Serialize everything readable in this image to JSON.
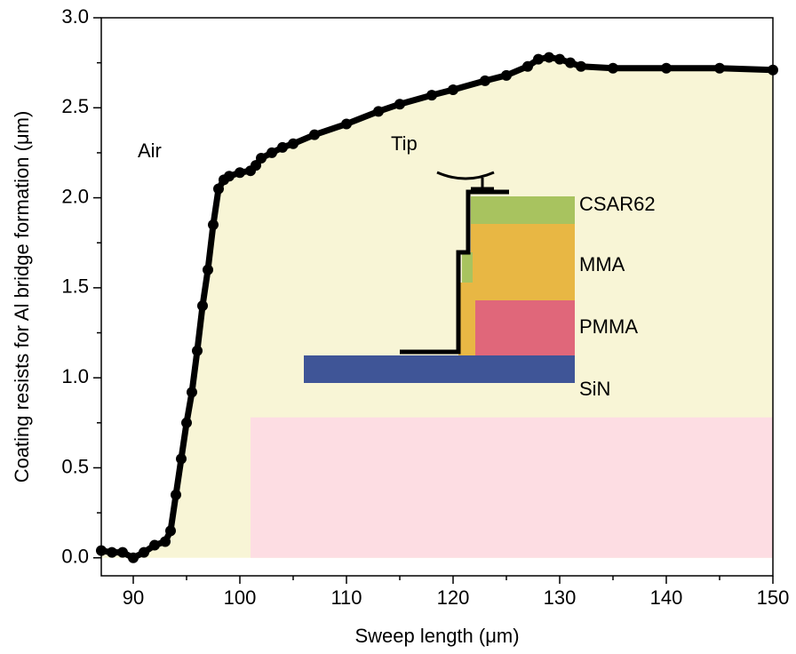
{
  "chart_data": {
    "type": "line",
    "x_label": "Sweep length (μm)",
    "y_label": "Coating resists for Al bridge formation (μm)",
    "xlim": [
      87,
      150
    ],
    "ylim": [
      -0.1,
      3.0
    ],
    "xticks": [
      90,
      100,
      110,
      120,
      130,
      140,
      150
    ],
    "xminorticks": [
      95,
      105,
      115,
      125,
      135,
      145
    ],
    "yticks": [
      {
        "value": 0,
        "label": "0.0"
      },
      0.5,
      {
        "value": 1,
        "label": "1.0"
      },
      1.5,
      {
        "value": 2,
        "label": "2.0"
      },
      2.5,
      {
        "value": 3,
        "label": "3.0"
      }
    ],
    "yminorticks": [
      0.25,
      0.75,
      1.25,
      1.75,
      2.25,
      2.75
    ],
    "x": [
      87,
      88,
      89,
      90,
      91,
      92,
      93,
      93.5,
      94,
      94.5,
      95,
      95.5,
      96,
      96.5,
      97,
      97.5,
      98,
      98.5,
      99,
      100,
      101,
      101.5,
      102,
      103,
      104,
      105,
      107,
      110,
      113,
      115,
      118,
      120,
      123,
      125,
      127,
      128,
      129,
      130,
      131,
      132,
      135,
      140,
      145,
      150
    ],
    "series": [
      {
        "color": "#000000",
        "fill": "#f8f5d6",
        "values": [
          0.04,
          0.03,
          0.03,
          0.0,
          0.03,
          0.07,
          0.09,
          0.15,
          0.35,
          0.55,
          0.75,
          0.92,
          1.15,
          1.4,
          1.6,
          1.85,
          2.05,
          2.1,
          2.12,
          2.14,
          2.15,
          2.18,
          2.22,
          2.25,
          2.28,
          2.3,
          2.35,
          2.41,
          2.48,
          2.52,
          2.57,
          2.6,
          2.65,
          2.68,
          2.73,
          2.77,
          2.78,
          2.77,
          2.75,
          2.73,
          2.72,
          2.72,
          2.72,
          2.71
        ]
      }
    ],
    "regions": [
      {
        "x": [
          101,
          150
        ],
        "y": [
          0,
          0.78
        ],
        "color": "#fddde3"
      }
    ],
    "annotations": [
      "Air",
      "Tip",
      "CSAR62",
      "MMA",
      "PMMA",
      "SiN"
    ]
  }
}
